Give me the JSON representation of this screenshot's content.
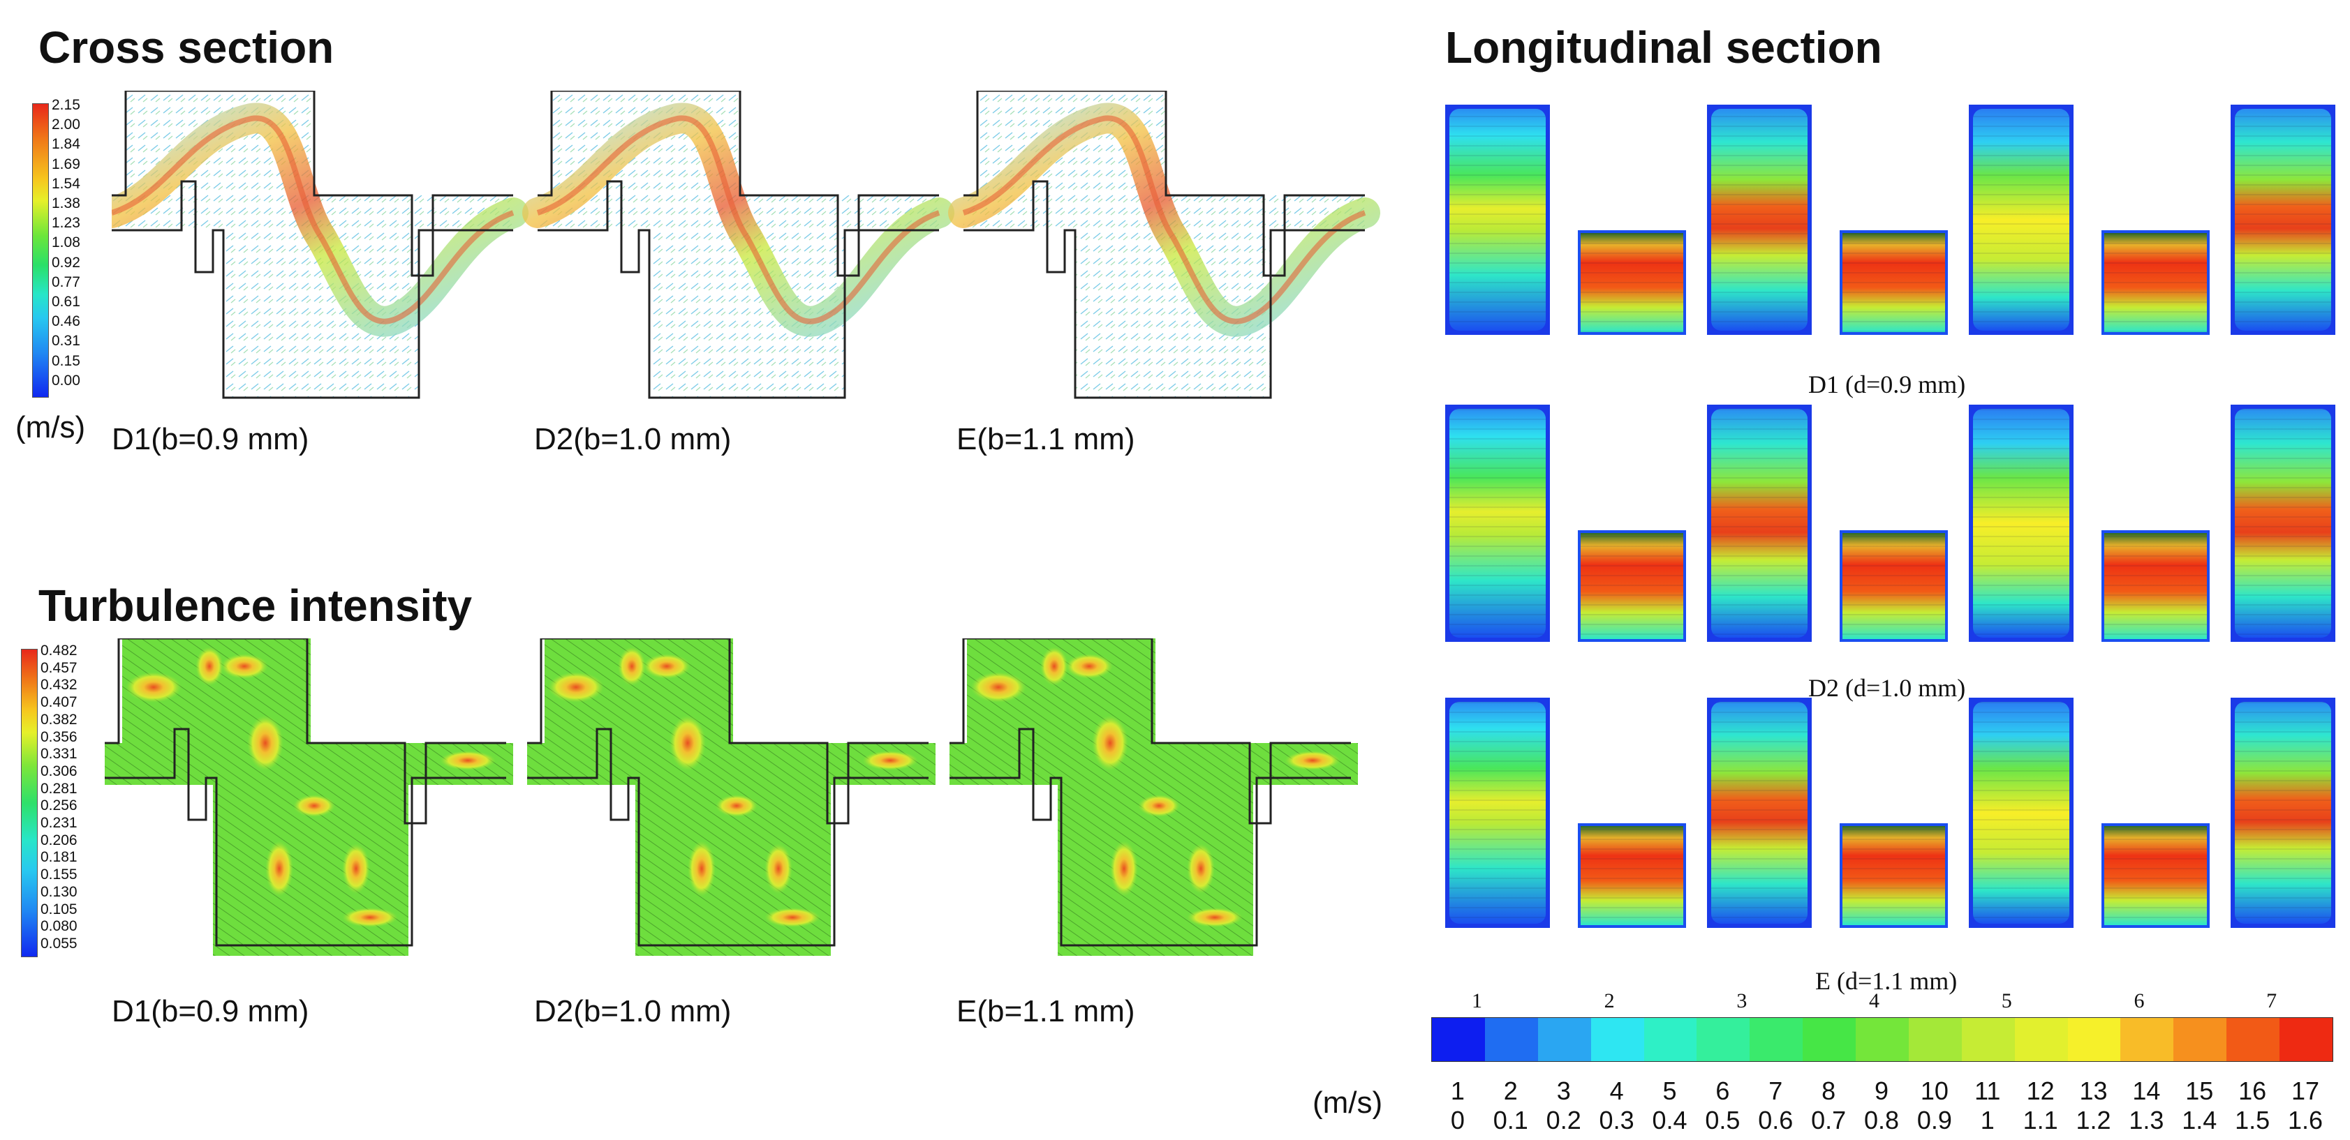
{
  "cross_section": {
    "title": "Cross section",
    "unit": "(m/s)",
    "legend_values": [
      "2.15",
      "2.00",
      "1.84",
      "1.69",
      "1.54",
      "1.38",
      "1.23",
      "1.08",
      "0.92",
      "0.77",
      "0.61",
      "0.46",
      "0.31",
      "0.15",
      "0.00"
    ],
    "panels": [
      "D1(b=0.9 mm)",
      "D2(b=1.0 mm)",
      "E(b=1.1 mm)"
    ]
  },
  "turbulence": {
    "title": "Turbulence intensity",
    "legend_values": [
      "0.482",
      "0.457",
      "0.432",
      "0.407",
      "0.382",
      "0.356",
      "0.331",
      "0.306",
      "0.281",
      "0.256",
      "0.231",
      "0.206",
      "0.181",
      "0.155",
      "0.130",
      "0.105",
      "0.080",
      "0.055"
    ],
    "panels": [
      "D1(b=0.9 mm)",
      "D2(b=1.0 mm)",
      "E(b=1.1 mm)"
    ]
  },
  "longitudinal": {
    "title": "Longitudinal section",
    "rows": [
      "D1 (d=0.9 mm)",
      "D2 (d=1.0 mm)",
      "E (d=1.1 mm)"
    ],
    "unit": "(m/s)",
    "colorbar_top_labels": [
      "1",
      "2",
      "3",
      "4",
      "5",
      "6",
      "7"
    ],
    "colorbar_levels": [
      "1",
      "2",
      "3",
      "4",
      "5",
      "6",
      "7",
      "8",
      "9",
      "10",
      "11",
      "12",
      "13",
      "14",
      "15",
      "16",
      "17"
    ],
    "colorbar_values": [
      "0",
      "0.1",
      "0.2",
      "0.3",
      "0.4",
      "0.5",
      "0.6",
      "0.7",
      "0.8",
      "0.9",
      "1",
      "1.1",
      "1.2",
      "1.3",
      "1.4",
      "1.5",
      "1.6"
    ],
    "colorbar_colors": [
      "#0d1ef0",
      "#1f6df2",
      "#2aa6f2",
      "#2ee6f2",
      "#2ef0c6",
      "#34ef9c",
      "#3aea6c",
      "#46e646",
      "#74e63a",
      "#a4e838",
      "#c6ec34",
      "#e2f02e",
      "#f6f02a",
      "#f8bc28",
      "#f6901e",
      "#f25a16",
      "#ee2a12"
    ]
  }
}
